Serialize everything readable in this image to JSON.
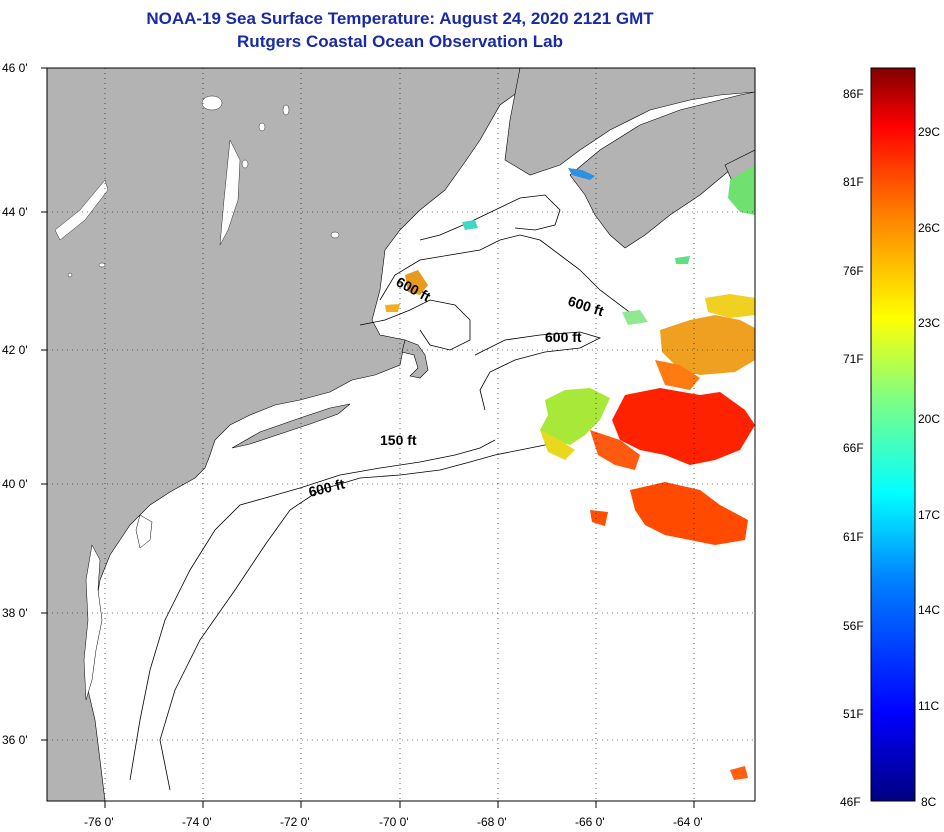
{
  "title": "NOAA-19 Sea Surface Temperature:  August 24, 2020 2121 GMT",
  "subtitle": "Rutgers Coastal Ocean Observation Lab",
  "map": {
    "lon_range": [
      -77,
      -62.5
    ],
    "lat_range": [
      35,
      46
    ],
    "lat_labels": [
      "46 0'",
      "44 0'",
      "42 0'",
      "40 0'",
      "38 0'",
      "36 0'"
    ],
    "lon_labels": [
      "-76 0'",
      "-74 0'",
      "-72 0'",
      "-70 0'",
      "-68 0'",
      "-66 0'",
      "-64 0'"
    ],
    "land_color": "#b3b3b3",
    "water_color": "#ffffff"
  },
  "contours": {
    "c600_gom": "600 ft",
    "c600_gom2": "600 ft",
    "c600_gb": "600 ft",
    "c150": "150 ft",
    "c600_shelf": "600 ft"
  },
  "colorbar": {
    "min_c": 8,
    "max_c": 31,
    "f_labels": [
      "86F",
      "81F",
      "76F",
      "71F",
      "66F",
      "61F",
      "56F",
      "51F",
      "46F"
    ],
    "c_labels": [
      "29C",
      "26C",
      "23C",
      "20C",
      "17C",
      "14C",
      "11C",
      "8C"
    ]
  }
}
